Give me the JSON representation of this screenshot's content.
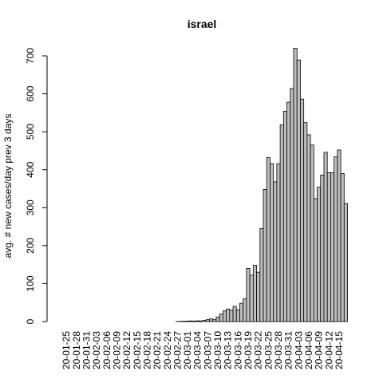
{
  "chart_data": {
    "type": "bar",
    "title": "israel",
    "xlabel": "",
    "ylabel": "avg. # new cases/day prev  3  days",
    "ylim": [
      0,
      720
    ],
    "yticks": [
      0,
      100,
      200,
      300,
      400,
      500,
      600,
      700
    ],
    "grid": false,
    "x_tick_labels": [
      "20-01-25",
      "20-01-28",
      "20-01-31",
      "20-02-03",
      "20-02-06",
      "20-02-09",
      "20-02-12",
      "20-02-15",
      "20-02-18",
      "20-02-21",
      "20-02-24",
      "20-02-27",
      "20-03-01",
      "20-03-04",
      "20-03-07",
      "20-03-10",
      "20-03-13",
      "20-03-16",
      "20-03-19",
      "20-03-22",
      "20-03-25",
      "20-03-28",
      "20-03-31",
      "20-04-03",
      "20-04-06",
      "20-04-09",
      "20-04-12",
      "20-04-15"
    ],
    "categories": [
      "20-01-23",
      "20-01-24",
      "20-01-25",
      "20-01-26",
      "20-01-27",
      "20-01-28",
      "20-01-29",
      "20-01-30",
      "20-01-31",
      "20-02-01",
      "20-02-02",
      "20-02-03",
      "20-02-04",
      "20-02-05",
      "20-02-06",
      "20-02-07",
      "20-02-08",
      "20-02-09",
      "20-02-10",
      "20-02-11",
      "20-02-12",
      "20-02-13",
      "20-02-14",
      "20-02-15",
      "20-02-16",
      "20-02-17",
      "20-02-18",
      "20-02-19",
      "20-02-20",
      "20-02-21",
      "20-02-22",
      "20-02-23",
      "20-02-24",
      "20-02-25",
      "20-02-26",
      "20-02-27",
      "20-02-28",
      "20-02-29",
      "20-03-01",
      "20-03-02",
      "20-03-03",
      "20-03-04",
      "20-03-05",
      "20-03-06",
      "20-03-07",
      "20-03-08",
      "20-03-09",
      "20-03-10",
      "20-03-11",
      "20-03-12",
      "20-03-13",
      "20-03-14",
      "20-03-15",
      "20-03-16",
      "20-03-17",
      "20-03-18",
      "20-03-19",
      "20-03-20",
      "20-03-21",
      "20-03-22",
      "20-03-23",
      "20-03-24",
      "20-03-25",
      "20-03-26",
      "20-03-27",
      "20-03-28",
      "20-03-29",
      "20-03-30",
      "20-03-31",
      "20-04-01",
      "20-04-02",
      "20-04-03",
      "20-04-04",
      "20-04-05",
      "20-04-06",
      "20-04-07",
      "20-04-08",
      "20-04-09",
      "20-04-10",
      "20-04-11",
      "20-04-12",
      "20-04-13",
      "20-04-14",
      "20-04-15",
      "20-04-16",
      "20-04-17"
    ],
    "values": [
      0,
      0,
      0,
      0,
      0,
      0,
      0,
      0,
      0,
      0,
      0,
      0,
      0,
      0,
      0,
      0,
      0,
      0,
      0,
      0,
      0,
      0,
      0,
      0,
      0,
      0,
      0,
      0,
      0,
      0,
      0,
      0,
      0,
      0,
      0,
      0.3,
      0.7,
      1,
      1.3,
      1.7,
      1.3,
      2,
      1.7,
      3,
      5,
      7,
      5,
      12,
      20,
      28,
      33,
      30,
      40,
      31,
      48,
      60,
      140,
      122,
      148,
      130,
      245,
      348,
      432,
      416,
      368,
      416,
      518,
      554,
      578,
      614,
      720,
      689,
      586,
      524,
      492,
      465,
      324,
      354,
      386,
      446,
      392,
      392,
      434,
      452,
      390,
      311
    ]
  }
}
